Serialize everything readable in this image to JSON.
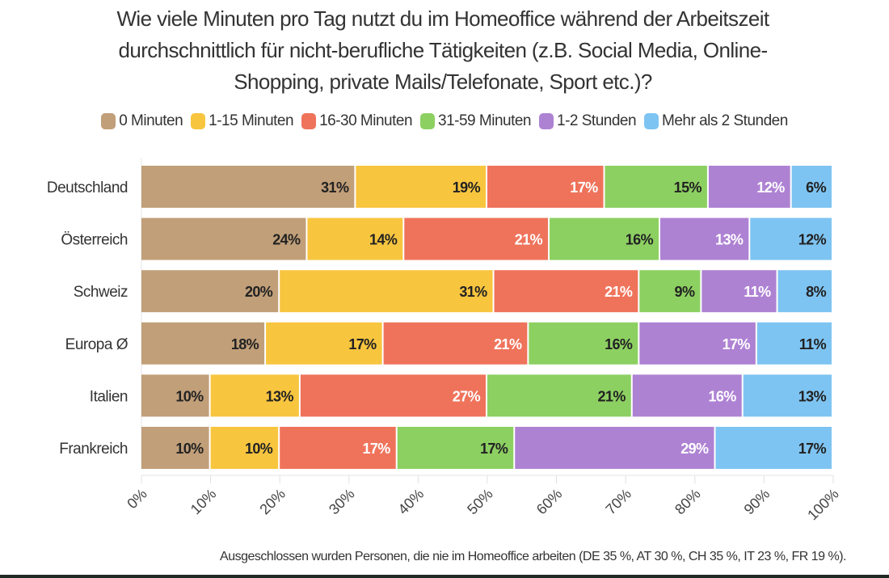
{
  "chart_data": {
    "type": "bar",
    "orientation": "horizontal",
    "stacked": true,
    "title": "Wie viele Minuten pro Tag nutzt du im Homeoffice während der Arbeitszeit durchschnittlich für nicht-berufliche Tätigkeiten (z.B. Social Media, Online-Shopping, private Mails/Telefonate, Sport etc.)?",
    "title_lines": [
      "Wie viele Minuten pro Tag nutzt du im Homeoffice während der Arbeitszeit",
      "durchschnittlich für nicht-berufliche Tätigkeiten (z.B. Social Media, Online-",
      "Shopping, private Mails/Telefonate, Sport etc.)?"
    ],
    "categories": [
      "Deutschland",
      "Österreich",
      "Schweiz",
      "Europa Ø",
      "Italien",
      "Frankreich"
    ],
    "series": [
      {
        "name": "0 Minuten",
        "color": "#c19f79",
        "label_color": "#222222",
        "values": [
          31,
          24,
          20,
          18,
          10,
          10
        ]
      },
      {
        "name": "1-15 Minuten",
        "color": "#f8c53f",
        "label_color": "#222222",
        "values": [
          19,
          14,
          31,
          17,
          13,
          10
        ]
      },
      {
        "name": "16-30 Minuten",
        "color": "#ef735b",
        "label_color": "#ffffff",
        "values": [
          17,
          21,
          21,
          21,
          27,
          17
        ]
      },
      {
        "name": "31-59 Minuten",
        "color": "#8dd062",
        "label_color": "#222222",
        "values": [
          15,
          16,
          9,
          16,
          21,
          17
        ]
      },
      {
        "name": "1-2 Stunden",
        "color": "#ae82d3",
        "label_color": "#ffffff",
        "values": [
          12,
          13,
          11,
          17,
          16,
          29
        ]
      },
      {
        "name": "Mehr als 2 Stunden",
        "color": "#7ec4f2",
        "label_color": "#222222",
        "values": [
          6,
          12,
          8,
          11,
          13,
          17
        ]
      }
    ],
    "xlim": [
      0,
      100
    ],
    "x_ticks": [
      "0%",
      "10%",
      "20%",
      "30%",
      "40%",
      "50%",
      "60%",
      "70%",
      "80%",
      "90%",
      "100%"
    ],
    "value_suffix": "%",
    "legend_position": "top",
    "grid": false,
    "footnote": "Ausgeschlossen wurden Personen, die nie im Homeoffice arbeiten (DE 35 %, AT 30 %, CH 35 %, IT 23 %, FR 19 %)."
  }
}
